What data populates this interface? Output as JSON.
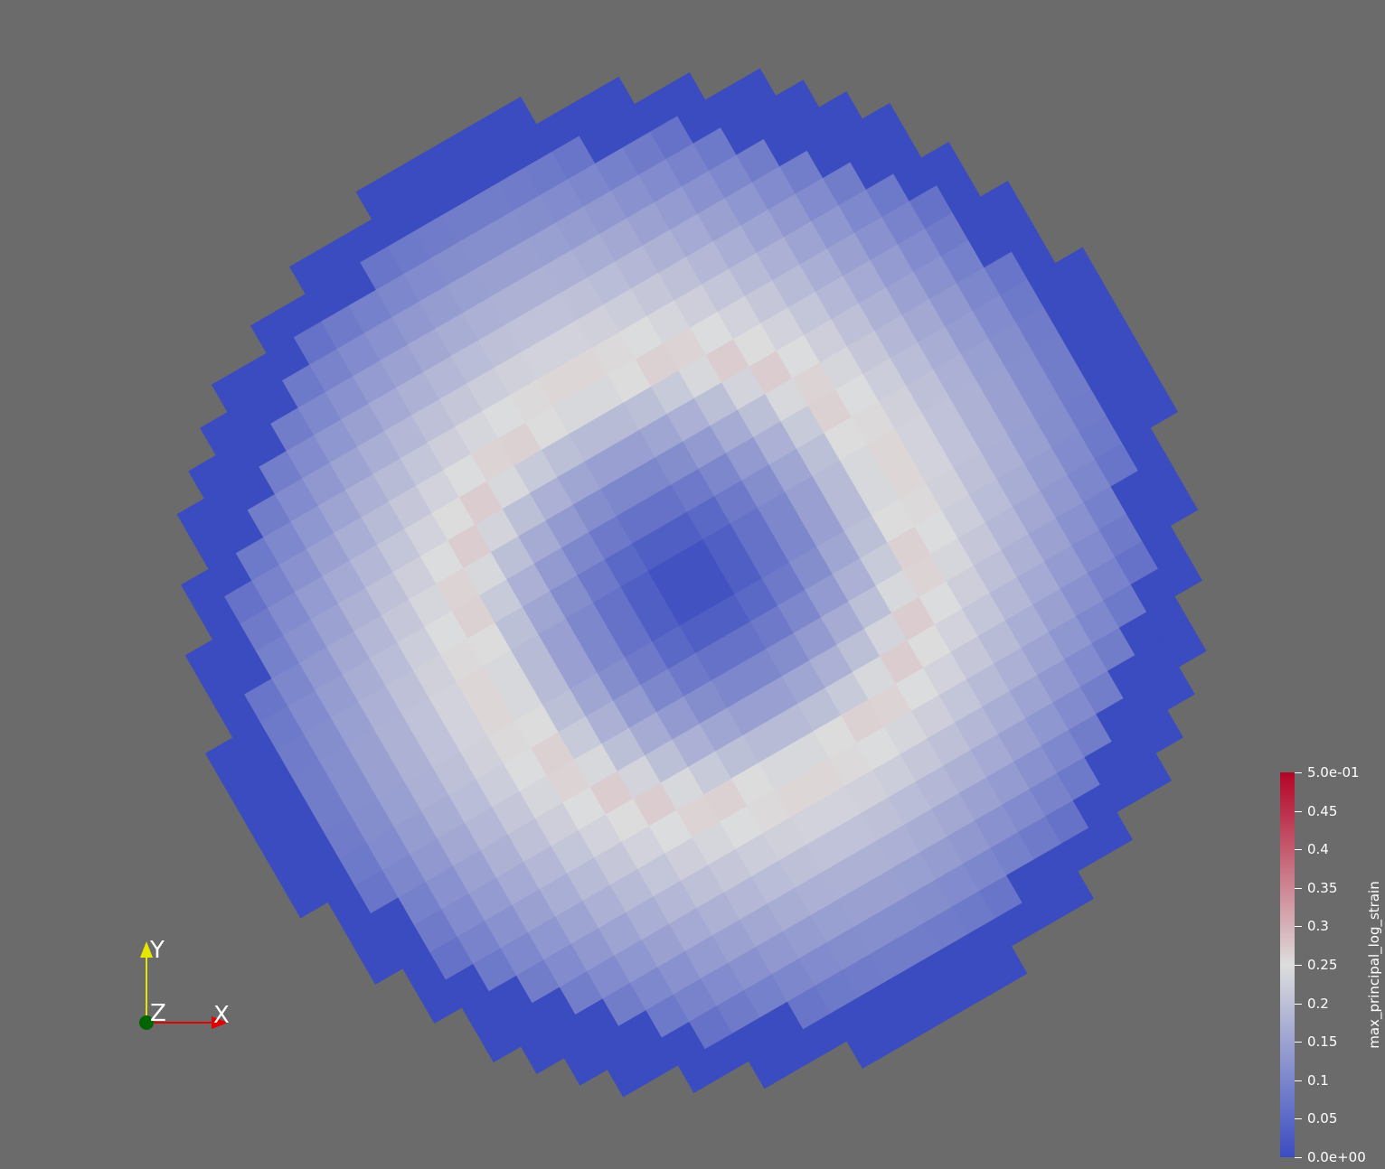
{
  "scalar_bar": {
    "title": "max_principal_log_strain",
    "ticks": [
      {
        "value": 0.5,
        "label": "5.0e-01"
      },
      {
        "value": 0.45,
        "label": "0.45"
      },
      {
        "value": 0.4,
        "label": "0.4"
      },
      {
        "value": 0.35,
        "label": "0.35"
      },
      {
        "value": 0.3,
        "label": "0.3"
      },
      {
        "value": 0.25,
        "label": "0.25"
      },
      {
        "value": 0.2,
        "label": "0.2"
      },
      {
        "value": 0.15,
        "label": "0.15"
      },
      {
        "value": 0.1,
        "label": "0.1"
      },
      {
        "value": 0.05,
        "label": "0.05"
      },
      {
        "value": 0.0,
        "label": "0.0e+00"
      }
    ],
    "range": [
      0.0,
      0.5
    ],
    "colormap": "Cool to Warm",
    "color_low": "#3b4cc0",
    "color_mid": "#dddddd",
    "color_high": "#b40426"
  },
  "orientation_axes": {
    "x_label": "X",
    "y_label": "Y",
    "z_label": "Z",
    "x_color": "#e00000",
    "y_color": "#e6e600",
    "z_color": "#006400"
  },
  "colors": {
    "background": "#6b6b6b",
    "label_text": "#ffffff"
  }
}
